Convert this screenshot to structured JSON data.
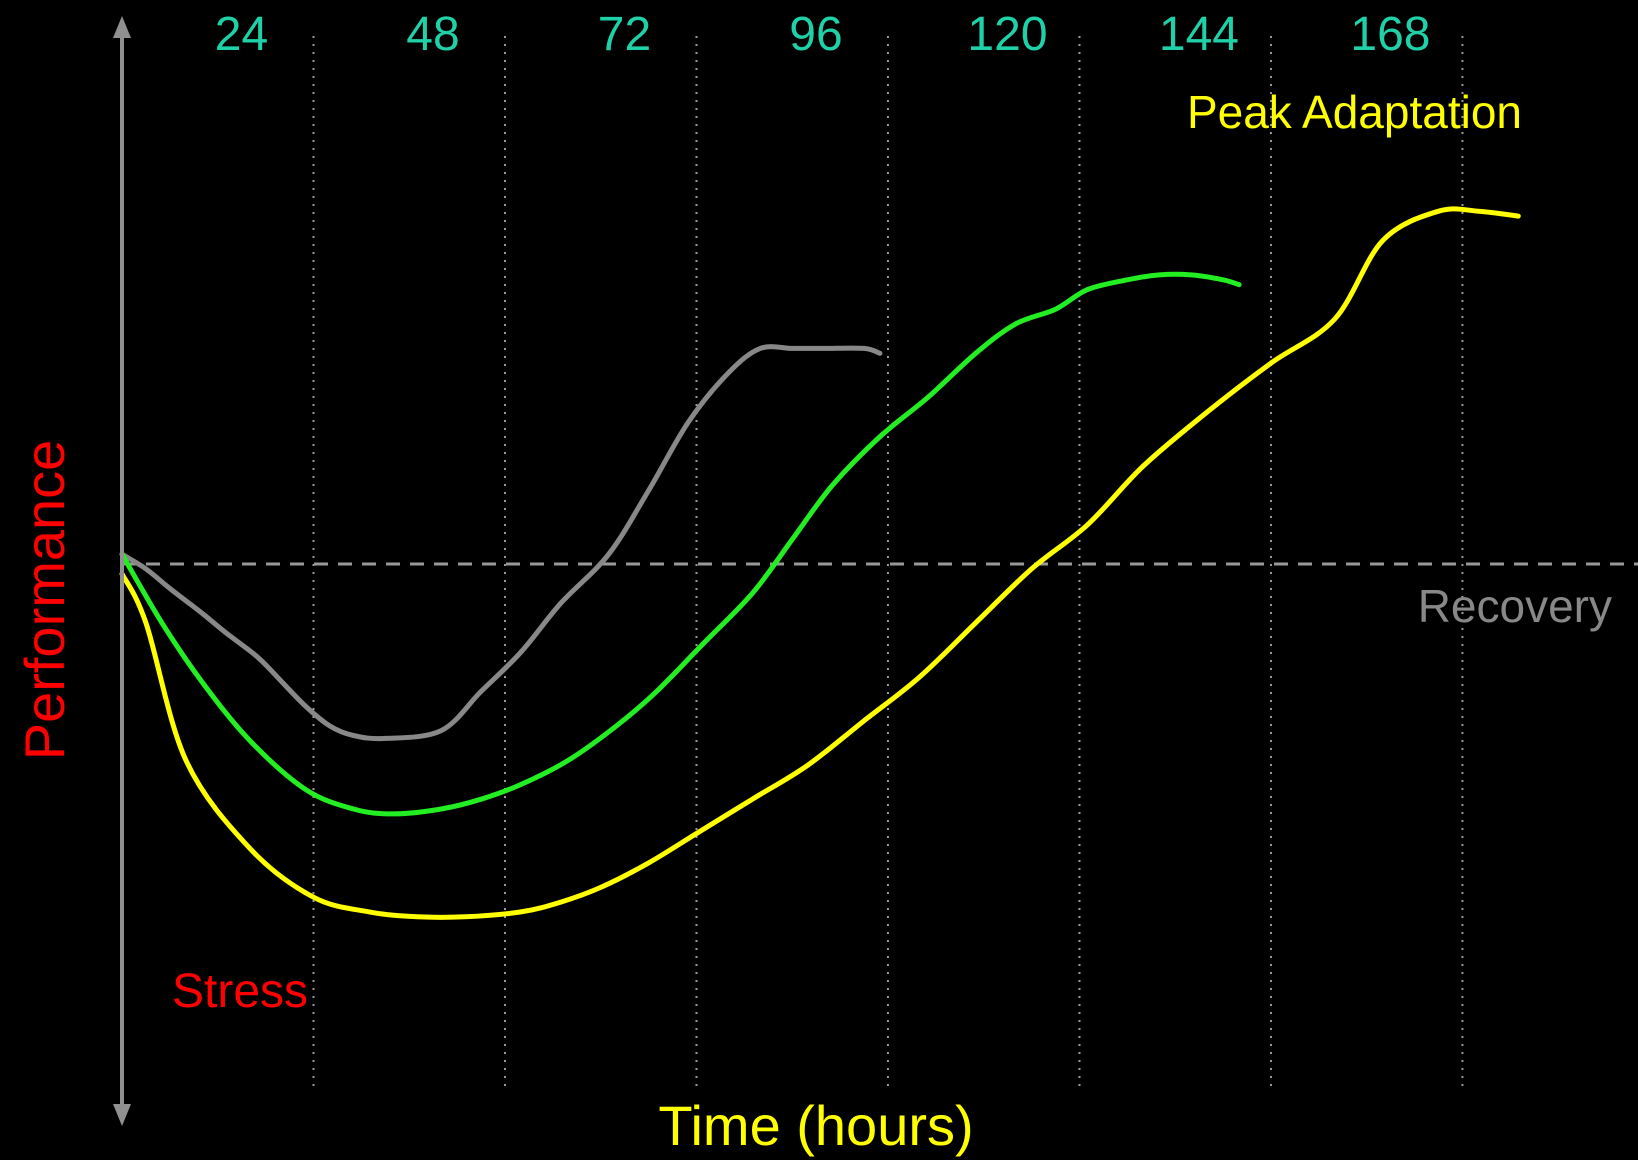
{
  "chart_data": {
    "type": "line",
    "ylabel": "Performance",
    "xlabel": "Time (hours)",
    "x_ticks": [
      24,
      48,
      72,
      96,
      120,
      144,
      168
    ],
    "xlim": [
      0,
      190
    ],
    "ylim": [
      -6,
      4
    ],
    "grid": "vertical dotted",
    "annotations": {
      "stress": "Stress",
      "recovery": "Recovery",
      "peak_adaptation": "Peak Adaptation"
    },
    "baseline": {
      "y": 0,
      "style": "dashed"
    },
    "series": [
      {
        "color": "#888888",
        "x": [
          0,
          3,
          6,
          10,
          13,
          17,
          20,
          23,
          26,
          29,
          33,
          40,
          45,
          50,
          55,
          61,
          66,
          71,
          76,
          80,
          84,
          88,
          93,
          95
        ],
        "y": [
          0.1,
          -0.05,
          -0.25,
          -0.5,
          -0.7,
          -0.95,
          -1.2,
          -1.45,
          -1.65,
          -1.75,
          -1.78,
          -1.7,
          -1.3,
          -0.9,
          -0.4,
          0.1,
          0.75,
          1.45,
          1.95,
          2.2,
          2.2,
          2.2,
          2.2,
          2.15
        ]
      },
      {
        "color": "#22ee22",
        "x": [
          0,
          5,
          10,
          16,
          23,
          29,
          34,
          40,
          45,
          50,
          56,
          62,
          67,
          73,
          79,
          84,
          89,
          95,
          101,
          107,
          112,
          117,
          121,
          126,
          130,
          134,
          138,
          140
        ],
        "y": [
          0.1,
          -0.6,
          -1.2,
          -1.8,
          -2.3,
          -2.5,
          -2.55,
          -2.5,
          -2.4,
          -2.25,
          -2.0,
          -1.65,
          -1.3,
          -0.8,
          -0.3,
          0.25,
          0.8,
          1.3,
          1.7,
          2.15,
          2.45,
          2.6,
          2.8,
          2.9,
          2.95,
          2.95,
          2.9,
          2.85
        ]
      },
      {
        "color": "#ffff00",
        "x": [
          0,
          3,
          8,
          16,
          24,
          31,
          37,
          43,
          50,
          55,
          60,
          66,
          72,
          79,
          86,
          93,
          100,
          107,
          114,
          121,
          128,
          136,
          144,
          152,
          158,
          165,
          170,
          175
        ],
        "y": [
          -0.1,
          -0.6,
          -2.0,
          -2.9,
          -3.4,
          -3.55,
          -3.6,
          -3.6,
          -3.55,
          -3.45,
          -3.3,
          -3.05,
          -2.75,
          -2.4,
          -2.05,
          -1.6,
          -1.15,
          -0.6,
          -0.05,
          0.4,
          1.0,
          1.55,
          2.05,
          2.5,
          3.3,
          3.6,
          3.6,
          3.55
        ]
      }
    ]
  }
}
